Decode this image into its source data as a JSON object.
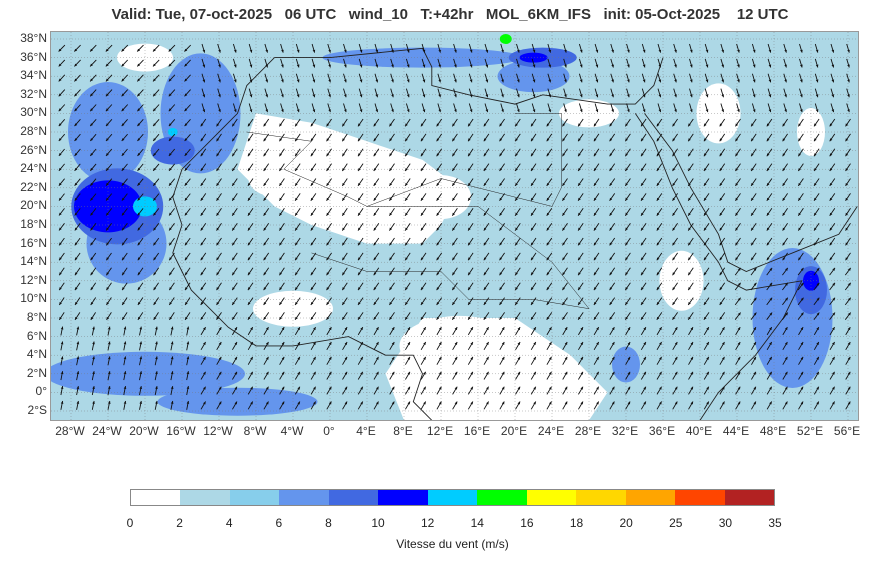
{
  "title": "Valid: Tue, 07-oct-2025   06 UTC   wind_10   T:+42hr   MOL_6KM_IFS   init: 05-Oct-2025    12 UTC",
  "latitudes": [
    {
      "label": "38°N",
      "lat": 38
    },
    {
      "label": "36°N",
      "lat": 36
    },
    {
      "label": "34°N",
      "lat": 34
    },
    {
      "label": "32°N",
      "lat": 32
    },
    {
      "label": "30°N",
      "lat": 30
    },
    {
      "label": "28°N",
      "lat": 28
    },
    {
      "label": "26°N",
      "lat": 26
    },
    {
      "label": "24°N",
      "lat": 24
    },
    {
      "label": "22°N",
      "lat": 22
    },
    {
      "label": "20°N",
      "lat": 20
    },
    {
      "label": "18°N",
      "lat": 18
    },
    {
      "label": "16°N",
      "lat": 16
    },
    {
      "label": "14°N",
      "lat": 14
    },
    {
      "label": "12°N",
      "lat": 12
    },
    {
      "label": "10°N",
      "lat": 10
    },
    {
      "label": "8°N",
      "lat": 8
    },
    {
      "label": "6°N",
      "lat": 6
    },
    {
      "label": "4°N",
      "lat": 4
    },
    {
      "label": "2°N",
      "lat": 2
    },
    {
      "label": "0°",
      "lat": 0
    },
    {
      "label": "2°S",
      "lat": -2
    }
  ],
  "longitudes": [
    {
      "label": "28°W",
      "lon": -28
    },
    {
      "label": "24°W",
      "lon": -24
    },
    {
      "label": "20°W",
      "lon": -20
    },
    {
      "label": "16°W",
      "lon": -16
    },
    {
      "label": "12°W",
      "lon": -12
    },
    {
      "label": "8°W",
      "lon": -8
    },
    {
      "label": "4°W",
      "lon": -4
    },
    {
      "label": "0°",
      "lon": 0
    },
    {
      "label": "4°E",
      "lon": 4
    },
    {
      "label": "8°E",
      "lon": 8
    },
    {
      "label": "12°E",
      "lon": 12
    },
    {
      "label": "16°E",
      "lon": 16
    },
    {
      "label": "20°E",
      "lon": 20
    },
    {
      "label": "24°E",
      "lon": 24
    },
    {
      "label": "28°E",
      "lon": 28
    },
    {
      "label": "32°E",
      "lon": 32
    },
    {
      "label": "36°E",
      "lon": 36
    },
    {
      "label": "40°E",
      "lon": 40
    },
    {
      "label": "44°E",
      "lon": 44
    },
    {
      "label": "48°E",
      "lon": 48
    },
    {
      "label": "52°E",
      "lon": 52
    },
    {
      "label": "56°E",
      "lon": 56
    }
  ],
  "colorbar": {
    "label": "Vitesse du vent (m/s)",
    "ticks": [
      "0",
      "2",
      "4",
      "6",
      "8",
      "10",
      "12",
      "14",
      "16",
      "18",
      "20",
      "25",
      "30",
      "35"
    ],
    "colors": [
      "#ffffff",
      "#add8e6",
      "#87ceeb",
      "#6495ed",
      "#4169e1",
      "#0000ff",
      "#00ccff",
      "#00ff00",
      "#ffff00",
      "#ffd700",
      "#ffa500",
      "#ff4500",
      "#b22222"
    ]
  },
  "map_colors": {
    "ocean_base": "#add8e6",
    "light": "#ffffff",
    "mid": "#87ceeb",
    "strong": "#6495ed",
    "stronger": "#4169e1",
    "core": "#0000ff",
    "peak": "#00ccff",
    "max": "#00ff00",
    "arrow": "#111111",
    "border": "#222222"
  }
}
